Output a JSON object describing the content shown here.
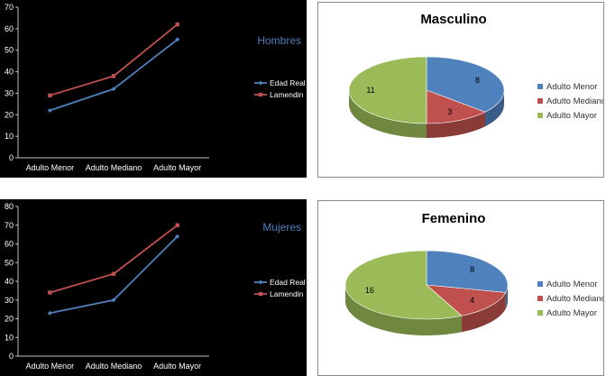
{
  "chart_data": [
    {
      "type": "line",
      "title": "Hombres",
      "categories": [
        "Adulto Menor",
        "Adulto Mediano",
        "Adulto Mayor"
      ],
      "ylim": [
        0,
        70
      ],
      "yticks": [
        0,
        10,
        20,
        30,
        40,
        50,
        60,
        70
      ],
      "grid": false,
      "legend": "right",
      "series": [
        {
          "name": "Edad Real",
          "values": [
            22,
            32,
            55
          ],
          "color": "#4f81bd"
        },
        {
          "name": "Lamendin",
          "values": [
            29,
            38,
            62
          ],
          "color": "#c0504d"
        }
      ]
    },
    {
      "type": "pie",
      "title": "Masculino",
      "legend": "right",
      "slices": [
        {
          "label": "Adulto Menor",
          "value": 8,
          "color": "#4f81bd"
        },
        {
          "label": "Adulto Mediano",
          "value": 3,
          "color": "#c0504d"
        },
        {
          "label": "Adulto Mayor",
          "value": 11,
          "color": "#9bbb59"
        }
      ]
    },
    {
      "type": "line",
      "title": "Mujeres",
      "categories": [
        "Adulto Menor",
        "Adulto Mediano",
        "Adulto Mayor"
      ],
      "ylim": [
        0,
        80
      ],
      "yticks": [
        0,
        10,
        20,
        30,
        40,
        50,
        60,
        70,
        80
      ],
      "grid": false,
      "legend": "right",
      "series": [
        {
          "name": "Edad Real",
          "values": [
            23,
            30,
            64
          ],
          "color": "#4f81bd"
        },
        {
          "name": "Lamendin",
          "values": [
            34,
            44,
            70
          ],
          "color": "#c0504d"
        }
      ]
    },
    {
      "type": "pie",
      "title": "Femenino",
      "legend": "right",
      "slices": [
        {
          "label": "Adulto Menor",
          "value": 8,
          "color": "#4f81bd"
        },
        {
          "label": "Adulto Mediano",
          "value": 4,
          "color": "#c0504d"
        },
        {
          "label": "Adulto Mayor",
          "value": 16,
          "color": "#9bbb59"
        }
      ]
    }
  ]
}
